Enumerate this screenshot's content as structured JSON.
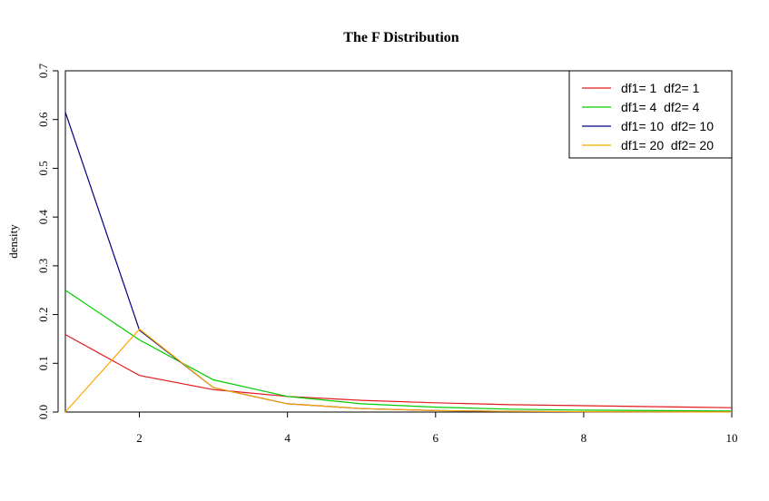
{
  "chart_data": {
    "type": "line",
    "title": "The F Distribution",
    "xlabel": "",
    "ylabel": "density",
    "xlim": [
      1,
      10
    ],
    "ylim": [
      0,
      0.7
    ],
    "x_ticks": [
      2,
      4,
      6,
      8,
      10
    ],
    "y_ticks": [
      0.0,
      0.1,
      0.2,
      0.3,
      0.4,
      0.5,
      0.6,
      0.7
    ],
    "y_tick_labels": [
      "0.0",
      "0.1",
      "0.2",
      "0.3",
      "0.4",
      "0.5",
      "0.6",
      "0.7"
    ],
    "x": [
      1,
      2,
      3,
      4,
      5,
      6,
      7,
      8,
      9,
      10
    ],
    "grid": false,
    "legend_position": "top-right",
    "series": [
      {
        "name": "df1= 1  df2= 1",
        "color": "#e31a1c",
        "values": [
          0.159,
          0.075,
          0.046,
          0.032,
          0.024,
          0.019,
          0.015,
          0.013,
          0.011,
          0.009
        ]
      },
      {
        "name": "df1= 4  df2= 4",
        "color": "#00cc00",
        "values": [
          0.25,
          0.148,
          0.066,
          0.032,
          0.017,
          0.01,
          0.006,
          0.004,
          0.003,
          0.002
        ]
      },
      {
        "name": "df1= 10  df2= 10",
        "color": "#000080",
        "values": [
          0.615,
          0.168,
          0.05,
          0.017,
          0.007,
          0.003,
          0.0015,
          0.0008,
          0.0004,
          0.0002
        ]
      },
      {
        "name": "df1= 20  df2= 20",
        "color": "#ffa500",
        "values": [
          0.0,
          0.17,
          0.05,
          0.017,
          0.007,
          0.003,
          0.0015,
          0.0008,
          0.0004,
          0.0002
        ]
      }
    ]
  }
}
